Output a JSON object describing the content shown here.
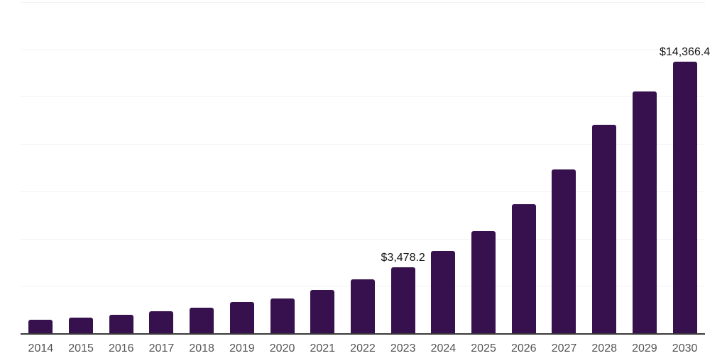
{
  "colors": {
    "background": "#ffffff",
    "bar": "#36114e",
    "axis_line": "#3a3a3a",
    "gridline": "#f3f3f3",
    "tick_label": "#545454",
    "data_label": "#141414"
  },
  "chart_data": {
    "type": "bar",
    "title": "",
    "xlabel": "",
    "ylabel": "",
    "categories": [
      "2014",
      "2015",
      "2016",
      "2017",
      "2018",
      "2019",
      "2020",
      "2021",
      "2022",
      "2023",
      "2024",
      "2025",
      "2026",
      "2027",
      "2028",
      "2029",
      "2030"
    ],
    "values": [
      710,
      825,
      975,
      1145,
      1350,
      1635,
      1840,
      2290,
      2860,
      3478.2,
      4330,
      5415,
      6820,
      8660,
      11000,
      12770,
      14366.4
    ],
    "data_labels": [
      "",
      "",
      "",
      "",
      "",
      "",
      "",
      "",
      "",
      "$3,478.2",
      "",
      "",
      "",
      "",
      "",
      "",
      "$14,366.4"
    ],
    "ylim": [
      0,
      17500
    ],
    "gridline_interval": 2500,
    "grid": true,
    "legend": "none",
    "y_axis_labels_visible": false
  }
}
